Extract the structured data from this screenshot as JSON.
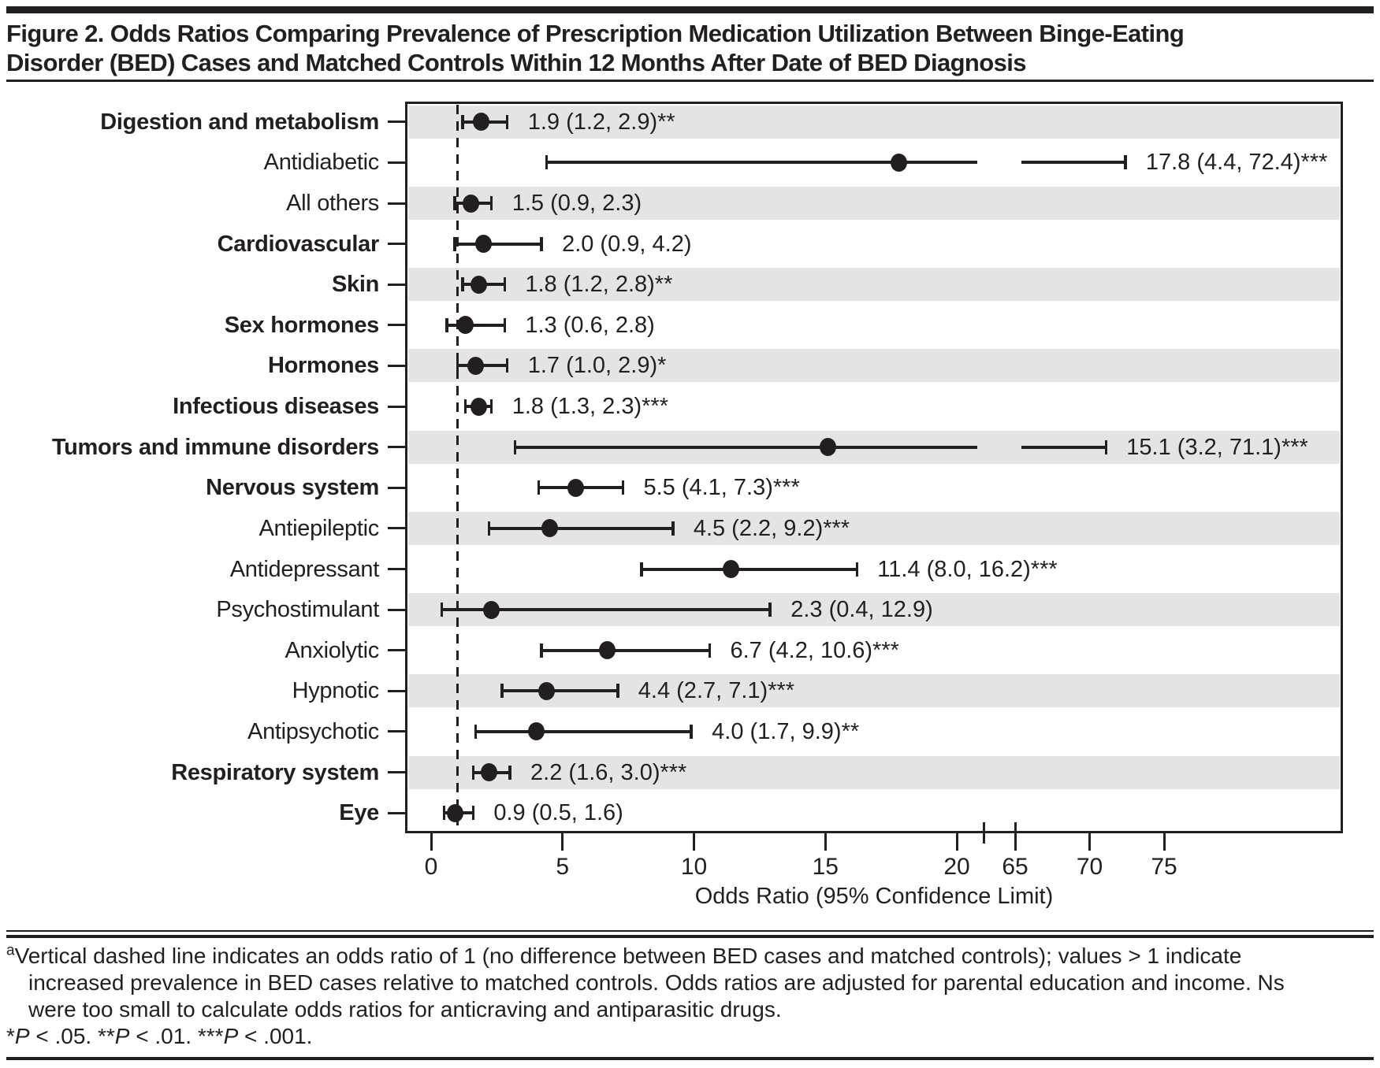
{
  "title_lines": [
    "Figure 2. Odds Ratios Comparing Prevalence of Prescription Medication Utilization Between Binge-Eating",
    "Disorder (BED) Cases and Matched Controls Within 12 Months After Date of BED Diagnosis"
  ],
  "colors": {
    "ink": "#231f20",
    "band": "#e4e4e4",
    "background": "#ffffff"
  },
  "chart_data": {
    "type": "scatter",
    "subtype": "forest-plot",
    "xlabel": "Odds Ratio (95% Confidence Limit)",
    "x_ticks": [
      0,
      5,
      10,
      15,
      20,
      65,
      70,
      75
    ],
    "axis_break": {
      "between": [
        20,
        65
      ]
    },
    "reference_line": 1,
    "grid": false,
    "rows": [
      {
        "label": "Digestion and metabolism",
        "bold": true,
        "or": 1.9,
        "lo": 1.2,
        "hi": 2.9,
        "annotation": "1.9 (1.2, 2.9)**"
      },
      {
        "label": "Antidiabetic",
        "bold": false,
        "or": 17.8,
        "lo": 4.4,
        "hi": 72.4,
        "annotation": "17.8 (4.4, 72.4)***"
      },
      {
        "label": "All others",
        "bold": false,
        "or": 1.5,
        "lo": 0.9,
        "hi": 2.3,
        "annotation": "1.5 (0.9, 2.3)"
      },
      {
        "label": "Cardiovascular",
        "bold": true,
        "or": 2.0,
        "lo": 0.9,
        "hi": 4.2,
        "annotation": "2.0 (0.9, 4.2)"
      },
      {
        "label": "Skin",
        "bold": true,
        "or": 1.8,
        "lo": 1.2,
        "hi": 2.8,
        "annotation": "1.8 (1.2, 2.8)**"
      },
      {
        "label": "Sex hormones",
        "bold": true,
        "or": 1.3,
        "lo": 0.6,
        "hi": 2.8,
        "annotation": "1.3 (0.6, 2.8)"
      },
      {
        "label": "Hormones",
        "bold": true,
        "or": 1.7,
        "lo": 1.0,
        "hi": 2.9,
        "annotation": "1.7 (1.0, 2.9)*"
      },
      {
        "label": "Infectious diseases",
        "bold": true,
        "or": 1.8,
        "lo": 1.3,
        "hi": 2.3,
        "annotation": "1.8 (1.3, 2.3)***"
      },
      {
        "label": "Tumors and immune disorders",
        "bold": true,
        "or": 15.1,
        "lo": 3.2,
        "hi": 71.1,
        "annotation": "15.1 (3.2, 71.1)***"
      },
      {
        "label": "Nervous system",
        "bold": true,
        "or": 5.5,
        "lo": 4.1,
        "hi": 7.3,
        "annotation": "5.5 (4.1, 7.3)***"
      },
      {
        "label": "Antiepileptic",
        "bold": false,
        "or": 4.5,
        "lo": 2.2,
        "hi": 9.2,
        "annotation": "4.5 (2.2, 9.2)***"
      },
      {
        "label": "Antidepressant",
        "bold": false,
        "or": 11.4,
        "lo": 8.0,
        "hi": 16.2,
        "annotation": "11.4 (8.0, 16.2)***"
      },
      {
        "label": "Psychostimulant",
        "bold": false,
        "or": 2.3,
        "lo": 0.4,
        "hi": 12.9,
        "annotation": "2.3 (0.4, 12.9)"
      },
      {
        "label": "Anxiolytic",
        "bold": false,
        "or": 6.7,
        "lo": 4.2,
        "hi": 10.6,
        "annotation": "6.7 (4.2, 10.6)***"
      },
      {
        "label": "Hypnotic",
        "bold": false,
        "or": 4.4,
        "lo": 2.7,
        "hi": 7.1,
        "annotation": "4.4 (2.7, 7.1)***"
      },
      {
        "label": "Antipsychotic",
        "bold": false,
        "or": 4.0,
        "lo": 1.7,
        "hi": 9.9,
        "annotation": "4.0 (1.7, 9.9)**"
      },
      {
        "label": "Respiratory system",
        "bold": true,
        "or": 2.2,
        "lo": 1.6,
        "hi": 3.0,
        "annotation": "2.2 (1.6, 3.0)***"
      },
      {
        "label": "Eye",
        "bold": true,
        "or": 0.9,
        "lo": 0.5,
        "hi": 1.6,
        "annotation": "0.9 (0.5, 1.6)"
      }
    ]
  },
  "footnote": {
    "marker": "a",
    "line1": "Vertical dashed line indicates an odds ratio of 1 (no difference between BED cases and matched controls); values > 1 indicate",
    "line2": "increased prevalence in BED cases relative to matched controls. Odds ratios are adjusted for parental education and income. Ns",
    "line3": "were too small to calculate odds ratios for anticraving and antiparasitic drugs.",
    "significance": [
      {
        "text": "*"
      },
      {
        "text": "P",
        "italic": true
      },
      {
        "text": " < .05. **"
      },
      {
        "text": "P",
        "italic": true
      },
      {
        "text": " < .01. ***"
      },
      {
        "text": "P",
        "italic": true
      },
      {
        "text": " < .001."
      }
    ]
  }
}
